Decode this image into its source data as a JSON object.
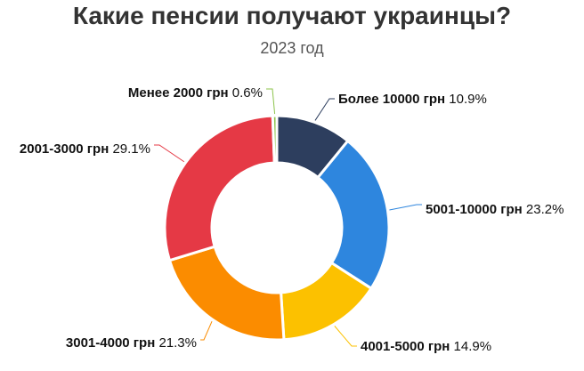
{
  "chart_data": {
    "type": "pie",
    "title": "Какие пенсии получают украинцы?",
    "subtitle": "2023 год",
    "donut": true,
    "slices": [
      {
        "label": "Более 10000 грн",
        "value": 10.9,
        "value_text": "10.9%",
        "color": "#2d3e5e"
      },
      {
        "label": "5001-10000 грн",
        "value": 23.2,
        "value_text": "23.2%",
        "color": "#2e86de"
      },
      {
        "label": "4001-5000 грн",
        "value": 14.9,
        "value_text": "14.9%",
        "color": "#fcc100"
      },
      {
        "label": "3001-4000 грн",
        "value": 21.3,
        "value_text": "21.3%",
        "color": "#fb8c00"
      },
      {
        "label": "2001-3000 грн",
        "value": 29.1,
        "value_text": "29.1%",
        "color": "#e53945"
      },
      {
        "label": "Менее 2000 грн",
        "value": 0.6,
        "value_text": "0.6%",
        "color": "#8bc34a"
      }
    ]
  }
}
